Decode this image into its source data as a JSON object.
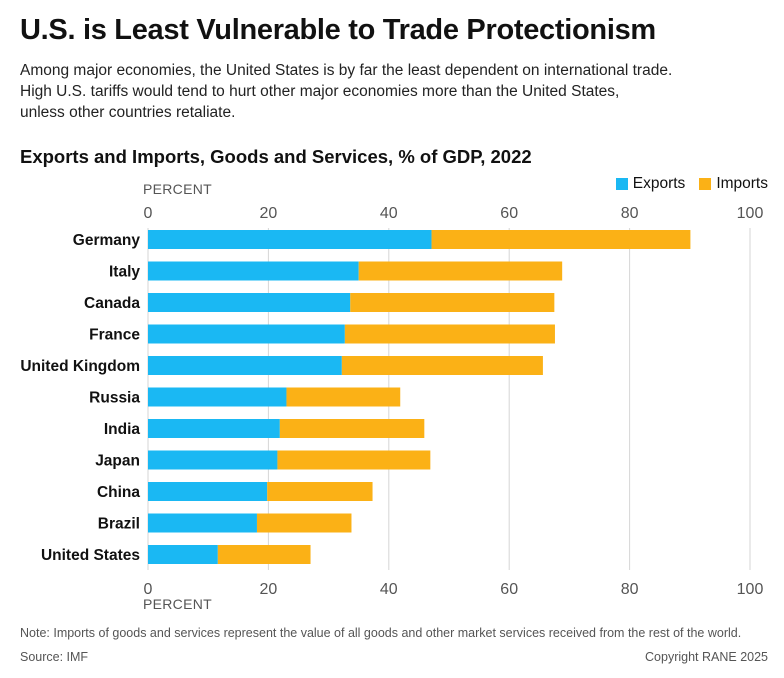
{
  "headline": "U.S. is Least Vulnerable to Trade Protectionism",
  "subtitle_lines": [
    "Among major economies, the United States is by far the least dependent on international trade.",
    "High U.S. tariffs would tend to hurt other major economies more than the United States,",
    "unless other countries retaliate."
  ],
  "note": "Note: Imports of goods and services represent the value of all goods and other market services received from the rest of the world.",
  "source": "Source: IMF",
  "copyright": "Copyright RANE 2025",
  "colors": {
    "exports": "#1ab8f3",
    "imports": "#fbb116",
    "grid": "#d6d6d6"
  },
  "chart_data": {
    "type": "bar",
    "orientation": "horizontal",
    "stacked": true,
    "title": "Exports and Imports, Goods and Services, % of GDP, 2022",
    "xlabel": "PERCENT",
    "xlim": [
      0,
      100
    ],
    "xticks": [
      0,
      20,
      40,
      60,
      80,
      100
    ],
    "grid": true,
    "legend_position": "top-right",
    "categories": [
      "Germany",
      "Italy",
      "Canada",
      "France",
      "United Kingdom",
      "Russia",
      "India",
      "Japan",
      "China",
      "Brazil",
      "United States"
    ],
    "series": [
      {
        "name": "Exports",
        "values": [
          47.1,
          35.0,
          33.6,
          32.7,
          32.2,
          23.0,
          21.9,
          21.5,
          19.8,
          18.1,
          11.6
        ]
      },
      {
        "name": "Imports",
        "values": [
          43.0,
          33.8,
          33.9,
          34.9,
          33.4,
          18.9,
          24.0,
          25.4,
          17.5,
          15.7,
          15.4
        ]
      }
    ]
  }
}
